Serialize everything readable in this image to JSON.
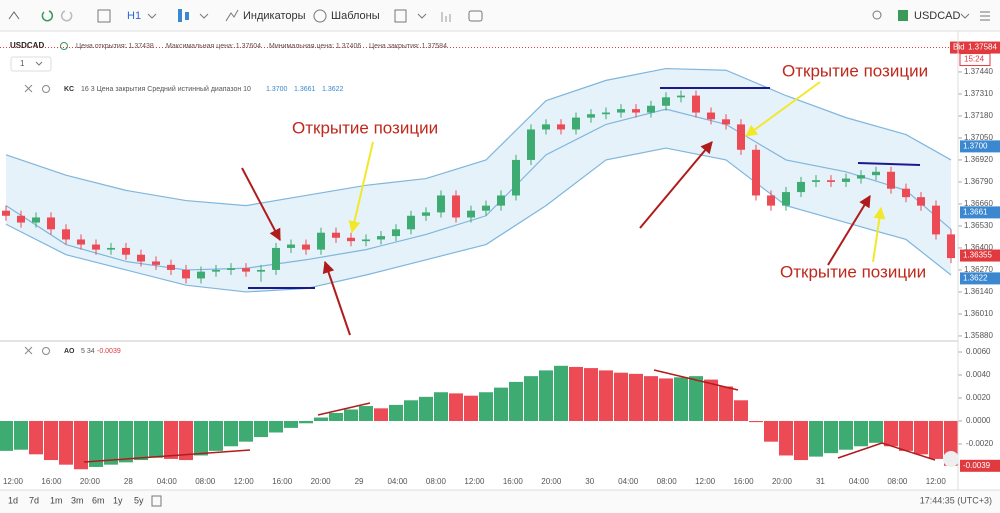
{
  "toolbar": {
    "interval": "H1",
    "indicators": "Индикаторы",
    "templates": "Шаблоны",
    "symbol": "USDCAD"
  },
  "header": {
    "symbol": "USDCAD",
    "open": "Цена открытия: 1.37438",
    "high": "Максимальная цена: 1.37604",
    "low": "Минимальная цена: 1.37406",
    "close": "Цена закрытия: 1.37584"
  },
  "layout_selector": "1",
  "kc": {
    "name": "KC",
    "params": "16 3 Цена закрытия Средний истинный диапазон 10"
  },
  "ao": {
    "name": "AO",
    "params": "5 34"
  },
  "annotations": [
    "Открытие позиции",
    "Открытие позиции",
    "Открытие позиции"
  ],
  "time_axis": [
    "12:00",
    "16:00",
    "20:00",
    "28",
    "04:00",
    "08:00",
    "12:00",
    "16:00",
    "20:00",
    "29",
    "04:00",
    "08:00",
    "12:00",
    "16:00",
    "20:00",
    "30",
    "04:00",
    "08:00",
    "12:00",
    "16:00",
    "20:00",
    "31",
    "04:00",
    "08:00",
    "12:00"
  ],
  "ranges": [
    "1d",
    "7d",
    "1m",
    "3m",
    "6m",
    "1y",
    "5y"
  ],
  "clock": "17:44:35 (UTC+3)",
  "bid_label": "Bid",
  "countdown": "15:24",
  "chart_data": [
    {
      "type": "candlestick",
      "color_up": "#3dab72",
      "color_down": "#ec4a55",
      "band_color": "#7fb6dd",
      "open": [
        1.3662,
        1.3659,
        1.3655,
        1.3658,
        1.3651,
        1.3645,
        1.3642,
        1.3639,
        1.364,
        1.3636,
        1.3632,
        1.363,
        1.3627,
        1.3622,
        1.3626,
        1.3627,
        1.3628,
        1.3626,
        1.3627,
        1.364,
        1.3642,
        1.3639,
        1.3649,
        1.3646,
        1.3644,
        1.3645,
        1.3647,
        1.3651,
        1.3659,
        1.3661,
        1.3671,
        1.3658,
        1.3662,
        1.3665,
        1.3671,
        1.3692,
        1.371,
        1.3713,
        1.371,
        1.3717,
        1.3719,
        1.372,
        1.3722,
        1.372,
        1.3724,
        1.3729,
        1.373,
        1.372,
        1.3716,
        1.3713,
        1.3698,
        1.3671,
        1.3665,
        1.3673,
        1.3679,
        1.368,
        1.3679,
        1.3681,
        1.3683,
        1.3685,
        1.3675,
        1.367,
        1.3665,
        1.3648
      ],
      "high": [
        1.3665,
        1.3662,
        1.3661,
        1.3661,
        1.3654,
        1.3648,
        1.3645,
        1.3643,
        1.3643,
        1.3639,
        1.3635,
        1.3633,
        1.363,
        1.3629,
        1.363,
        1.3631,
        1.3631,
        1.363,
        1.3643,
        1.3645,
        1.3645,
        1.3652,
        1.3652,
        1.3649,
        1.3648,
        1.365,
        1.3654,
        1.3662,
        1.3664,
        1.3674,
        1.3674,
        1.3665,
        1.3668,
        1.3674,
        1.3695,
        1.3713,
        1.3716,
        1.3716,
        1.372,
        1.3722,
        1.3723,
        1.3725,
        1.3725,
        1.3727,
        1.3732,
        1.3733,
        1.3733,
        1.3723,
        1.3719,
        1.3716,
        1.3701,
        1.3674,
        1.3676,
        1.3682,
        1.3683,
        1.3683,
        1.3684,
        1.3686,
        1.3688,
        1.3688,
        1.3678,
        1.3673,
        1.3668,
        1.3651
      ],
      "low": [
        1.3656,
        1.3652,
        1.3652,
        1.3648,
        1.3642,
        1.3639,
        1.3636,
        1.3636,
        1.3633,
        1.3629,
        1.3627,
        1.3624,
        1.3619,
        1.3619,
        1.3623,
        1.3624,
        1.3623,
        1.362,
        1.3624,
        1.3637,
        1.3636,
        1.3636,
        1.3643,
        1.3641,
        1.3641,
        1.3642,
        1.3644,
        1.3648,
        1.3656,
        1.3658,
        1.3655,
        1.3655,
        1.3659,
        1.3662,
        1.3668,
        1.3689,
        1.3707,
        1.3707,
        1.3707,
        1.3714,
        1.3716,
        1.3717,
        1.3717,
        1.3717,
        1.3721,
        1.3726,
        1.3717,
        1.3713,
        1.371,
        1.3695,
        1.3668,
        1.3662,
        1.3662,
        1.367,
        1.3676,
        1.3676,
        1.3676,
        1.3678,
        1.368,
        1.3672,
        1.3667,
        1.3662,
        1.3645,
        1.3631
      ],
      "close": [
        1.3659,
        1.3655,
        1.3658,
        1.3651,
        1.3645,
        1.3642,
        1.3639,
        1.364,
        1.3636,
        1.3632,
        1.363,
        1.3627,
        1.3622,
        1.3626,
        1.3627,
        1.3628,
        1.3626,
        1.3627,
        1.364,
        1.3642,
        1.3639,
        1.3649,
        1.3646,
        1.3644,
        1.3645,
        1.3647,
        1.3651,
        1.3659,
        1.3661,
        1.3671,
        1.3658,
        1.3662,
        1.3665,
        1.3671,
        1.3692,
        1.371,
        1.3713,
        1.371,
        1.3717,
        1.3719,
        1.372,
        1.3722,
        1.372,
        1.3724,
        1.3729,
        1.373,
        1.372,
        1.3716,
        1.3713,
        1.3698,
        1.3671,
        1.3665,
        1.3673,
        1.3679,
        1.368,
        1.3679,
        1.3681,
        1.3683,
        1.3685,
        1.3675,
        1.367,
        1.3665,
        1.3648,
        1.3634
      ],
      "band_index": [
        0,
        4,
        8,
        12,
        16,
        20,
        24,
        28,
        32,
        36,
        40,
        44,
        48,
        52,
        56,
        60,
        63
      ],
      "band_upper": [
        1.3695,
        1.3683,
        1.3674,
        1.3668,
        1.3665,
        1.3671,
        1.3677,
        1.3681,
        1.3692,
        1.3727,
        1.3739,
        1.3746,
        1.3745,
        1.373,
        1.3717,
        1.3707,
        1.3692
      ],
      "band_middle": [
        1.3665,
        1.3642,
        1.3632,
        1.3627,
        1.3628,
        1.3633,
        1.3639,
        1.3648,
        1.3659,
        1.3695,
        1.3713,
        1.3722,
        1.3713,
        1.3692,
        1.3685,
        1.3674,
        1.3651
      ],
      "band_lower": [
        1.3654,
        1.3636,
        1.3627,
        1.3618,
        1.3614,
        1.3616,
        1.3624,
        1.3633,
        1.3642,
        1.3665,
        1.3692,
        1.3699,
        1.3692,
        1.3665,
        1.3655,
        1.3645,
        1.3624
      ],
      "ylim": [
        1.35856,
        1.3754
      ],
      "yticks": [
        {
          "value": 1.3744,
          "label": "1.37440"
        },
        {
          "value": 1.3731,
          "label": "1.37310"
        },
        {
          "value": 1.3718,
          "label": "1.37180"
        },
        {
          "value": 1.3705,
          "label": "1.37050"
        },
        {
          "value": 1.3692,
          "label": "1.36920"
        },
        {
          "value": 1.3679,
          "label": "1.36790"
        },
        {
          "value": 1.3666,
          "label": "1.36660"
        },
        {
          "value": 1.3653,
          "label": "1.36530"
        },
        {
          "value": 1.364,
          "label": "1.36400"
        },
        {
          "value": 1.3627,
          "label": "1.36270"
        },
        {
          "value": 1.3614,
          "label": "1.36140"
        },
        {
          "value": 1.3601,
          "label": "1.36010"
        },
        {
          "value": 1.3588,
          "label": "1.35880"
        }
      ],
      "price_tags": [
        {
          "value": 1.37584,
          "label": "1.37584",
          "color": "#e0393e"
        },
        {
          "value": 1.37,
          "label": "1.3700",
          "color": "#3b87d0"
        },
        {
          "value": 1.3661,
          "label": "1.3661",
          "color": "#3b87d0"
        },
        {
          "value": 1.36355,
          "label": "1.36355",
          "color": "#e0393e"
        },
        {
          "value": 1.3622,
          "label": "1.3622",
          "color": "#3b87d0"
        }
      ]
    },
    {
      "type": "bar",
      "color_up": "#3dab72",
      "color_down": "#ec4a55",
      "values": [
        -0.0026,
        -0.0025,
        -0.0029,
        -0.0034,
        -0.0038,
        -0.0042,
        -0.004,
        -0.0038,
        -0.0036,
        -0.0034,
        -0.0032,
        -0.0033,
        -0.0034,
        -0.003,
        -0.0026,
        -0.0022,
        -0.0018,
        -0.0014,
        -0.001,
        -0.0006,
        -0.0002,
        0.0003,
        0.0007,
        0.001,
        0.0013,
        0.0011,
        0.0014,
        0.0018,
        0.0021,
        0.0025,
        0.0024,
        0.0022,
        0.0025,
        0.0029,
        0.0034,
        0.0039,
        0.0044,
        0.0048,
        0.0047,
        0.0046,
        0.0044,
        0.0042,
        0.0041,
        0.0039,
        0.0037,
        0.0038,
        0.0039,
        0.0036,
        0.003,
        0.0018,
        -0.0001,
        -0.0018,
        -0.003,
        -0.0034,
        -0.0031,
        -0.0028,
        -0.0025,
        -0.0022,
        -0.0019,
        -0.0022,
        -0.0026,
        -0.0029,
        -0.0033,
        -0.0039
      ],
      "ylim": [
        -0.00496,
        0.00687
      ],
      "yticks": [
        {
          "value": 0.006,
          "label": "0.0060"
        },
        {
          "value": 0.004,
          "label": "0.0040"
        },
        {
          "value": 0.002,
          "label": "0.0020"
        },
        {
          "value": 0,
          "label": "0.0000"
        },
        {
          "value": -0.002,
          "label": "-0.0020"
        }
      ],
      "last_tag": {
        "value": -0.0039,
        "label": "-0.0039",
        "color": "#e0393e"
      }
    }
  ]
}
